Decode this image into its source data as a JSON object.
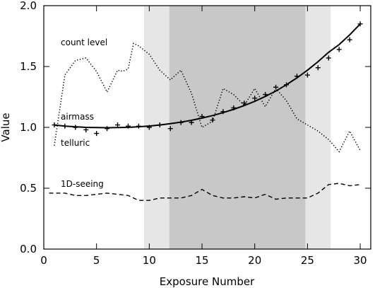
{
  "chart_data": {
    "type": "line",
    "xlabel": "Exposure Number",
    "ylabel": "Value",
    "xlim": [
      0,
      31
    ],
    "ylim": [
      0.0,
      2.0
    ],
    "x_ticks": [
      0,
      5,
      10,
      15,
      20,
      25,
      30
    ],
    "y_ticks": [
      0.0,
      0.5,
      1.0,
      1.5,
      2.0
    ],
    "y_tick_labels": [
      "0.0",
      "0.5",
      "1.0",
      "1.5",
      "2.0"
    ],
    "grid": false,
    "shaded_regions": [
      {
        "x_range": [
          9.5,
          27.2
        ],
        "color": "#e6e6e6"
      },
      {
        "x_range": [
          11.9,
          24.8
        ],
        "color": "#c8c8c8"
      }
    ],
    "series": [
      {
        "name": "count level",
        "style": "dotted",
        "x": [
          1,
          2,
          3,
          4,
          5,
          6,
          7,
          7.5,
          8,
          8.5,
          9,
          10,
          11,
          12,
          13,
          14,
          15,
          16,
          17,
          18,
          19,
          20,
          21,
          22,
          23,
          24,
          25,
          26,
          27,
          28,
          29,
          30
        ],
        "y": [
          0.85,
          1.43,
          1.55,
          1.57,
          1.46,
          1.29,
          1.47,
          1.46,
          1.48,
          1.69,
          1.67,
          1.6,
          1.47,
          1.39,
          1.47,
          1.28,
          1.0,
          1.05,
          1.32,
          1.27,
          1.18,
          1.32,
          1.17,
          1.32,
          1.22,
          1.07,
          1.02,
          0.97,
          0.9,
          0.8,
          0.97,
          0.81
        ]
      },
      {
        "name": "airmass",
        "style": "solid",
        "x": [
          1,
          2,
          3,
          4,
          5,
          6,
          7,
          8,
          9,
          10,
          11,
          12,
          13,
          14,
          15,
          16,
          17,
          18,
          19,
          20,
          21,
          22,
          23,
          24,
          25,
          26,
          27,
          28,
          29,
          30
        ],
        "y": [
          1.02,
          1.01,
          1.005,
          1.0,
          0.998,
          0.997,
          0.998,
          1.0,
          1.005,
          1.011,
          1.02,
          1.03,
          1.043,
          1.058,
          1.076,
          1.097,
          1.121,
          1.148,
          1.179,
          1.214,
          1.254,
          1.299,
          1.35,
          1.407,
          1.47,
          1.54,
          1.617,
          1.68,
          1.76,
          1.85
        ]
      },
      {
        "name": "telluric",
        "style": "plus",
        "x": [
          1,
          2,
          3,
          4,
          5,
          6,
          7,
          8,
          9,
          10,
          11,
          12,
          13,
          14,
          15,
          16,
          17,
          18,
          19,
          20,
          21,
          22,
          23,
          24,
          25,
          26,
          27,
          28,
          29,
          30
        ],
        "y": [
          1.02,
          1.01,
          1.0,
          0.98,
          0.95,
          0.99,
          1.02,
          1.01,
          1.01,
          1.0,
          1.02,
          0.99,
          1.04,
          1.04,
          1.09,
          1.06,
          1.13,
          1.16,
          1.2,
          1.24,
          1.27,
          1.33,
          1.35,
          1.42,
          1.43,
          1.49,
          1.57,
          1.64,
          1.72,
          1.85
        ]
      },
      {
        "name": "1D-seeing",
        "style": "dashed",
        "x": [
          0.5,
          1,
          2,
          3,
          4,
          5,
          6,
          7,
          8,
          9,
          10,
          11,
          12,
          13,
          14,
          15,
          16,
          17,
          18,
          19,
          20,
          21,
          22,
          23,
          24,
          25,
          26,
          27,
          28,
          29,
          30
        ],
        "y": [
          0.46,
          0.46,
          0.46,
          0.44,
          0.44,
          0.45,
          0.46,
          0.45,
          0.44,
          0.4,
          0.4,
          0.42,
          0.42,
          0.42,
          0.44,
          0.49,
          0.44,
          0.42,
          0.42,
          0.43,
          0.42,
          0.45,
          0.41,
          0.42,
          0.42,
          0.42,
          0.46,
          0.53,
          0.54,
          0.52,
          0.53
        ]
      }
    ]
  }
}
